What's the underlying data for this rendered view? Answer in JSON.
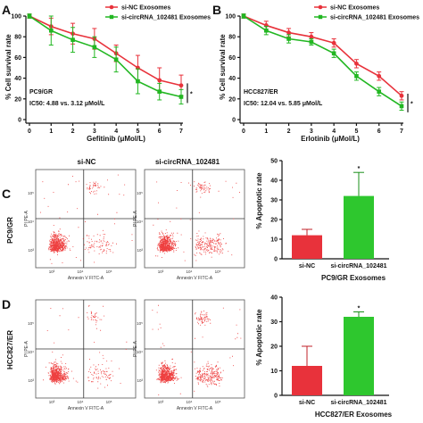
{
  "colors": {
    "red": "#e8323b",
    "green": "#22b722",
    "lightred": "#ee4040",
    "greenbar": "#2ec72e"
  },
  "panels": {
    "a": "A",
    "b": "B",
    "c": "C",
    "d": "D"
  },
  "flow": {
    "col_labels": [
      "si-NC",
      "si-circRNA_102481"
    ],
    "row_labels": [
      "PC9/GR",
      "HCC827/ER"
    ],
    "y_axis": "PI PE-A",
    "x_axis": "Annexin V FITC-A",
    "ticks": [
      "10³",
      "10⁴",
      "10⁵"
    ],
    "yticks": [
      "10³",
      "10⁴",
      "10⁵"
    ]
  },
  "chart_data": [
    {
      "type": "line",
      "x": [
        0,
        1,
        2,
        3,
        4,
        5,
        6,
        7
      ],
      "series": [
        {
          "name": "si-NC Exosomes",
          "values": [
            100,
            90,
            83,
            78,
            64,
            50,
            38,
            33
          ],
          "err": [
            2,
            8,
            10,
            10,
            8,
            12,
            12,
            10
          ]
        },
        {
          "name": "si-circRNA_102481 Exosomes",
          "values": [
            100,
            86,
            77,
            70,
            58,
            37,
            27,
            22
          ],
          "err": [
            2,
            14,
            12,
            10,
            12,
            12,
            8,
            7
          ]
        }
      ],
      "xlabel": "Gefitinib (μMol/L)",
      "ylabel": "% Cell survival rate",
      "ylim": [
        0,
        100
      ],
      "yticks": [
        0,
        20,
        40,
        60,
        80,
        100
      ],
      "annotation": [
        "PC9/GR",
        "IC50: 4.88 vs. 3.12 μMol/L"
      ],
      "significance": "*",
      "legend": "top-right"
    },
    {
      "type": "line",
      "x": [
        0,
        1,
        2,
        3,
        4,
        5,
        6,
        7
      ],
      "series": [
        {
          "name": "si-NC Exosomes",
          "values": [
            100,
            91,
            84,
            80,
            74,
            54,
            42,
            23
          ],
          "err": [
            2,
            4,
            4,
            4,
            4,
            4,
            4,
            4
          ]
        },
        {
          "name": "si-circRNA_102481 Exosomes",
          "values": [
            100,
            86,
            78,
            75,
            64,
            42,
            27,
            13
          ],
          "err": [
            2,
            4,
            4,
            3,
            4,
            4,
            4,
            4
          ]
        }
      ],
      "xlabel": "Erlotinib (μMol/L)",
      "ylabel": "% Cell survival rate",
      "ylim": [
        0,
        100
      ],
      "yticks": [
        0,
        20,
        40,
        60,
        80,
        100
      ],
      "annotation": [
        "HCC827/ER",
        "IC50: 12.04 vs. 5.85 μMol/L"
      ],
      "significance": "*",
      "legend": "top-right"
    },
    {
      "type": "bar",
      "categories": [
        "si-NC",
        "si-circRNA_102481"
      ],
      "values": [
        12,
        32
      ],
      "err": [
        3,
        12
      ],
      "xlabel": "PC9/GR Exosomes",
      "ylabel": "% Apoptotic rate",
      "ylim": [
        0,
        50
      ],
      "yticks": [
        0,
        10,
        20,
        30,
        40,
        50
      ],
      "significance": "*"
    },
    {
      "type": "bar",
      "categories": [
        "si-NC",
        "si-circRNA_102481"
      ],
      "values": [
        12,
        32
      ],
      "err": [
        8,
        2
      ],
      "xlabel": "HCC827/ER Exosomes",
      "ylabel": "% Apoptotic rate",
      "ylim": [
        0,
        40
      ],
      "yticks": [
        0,
        10,
        20,
        30,
        40
      ],
      "significance": "*"
    }
  ]
}
